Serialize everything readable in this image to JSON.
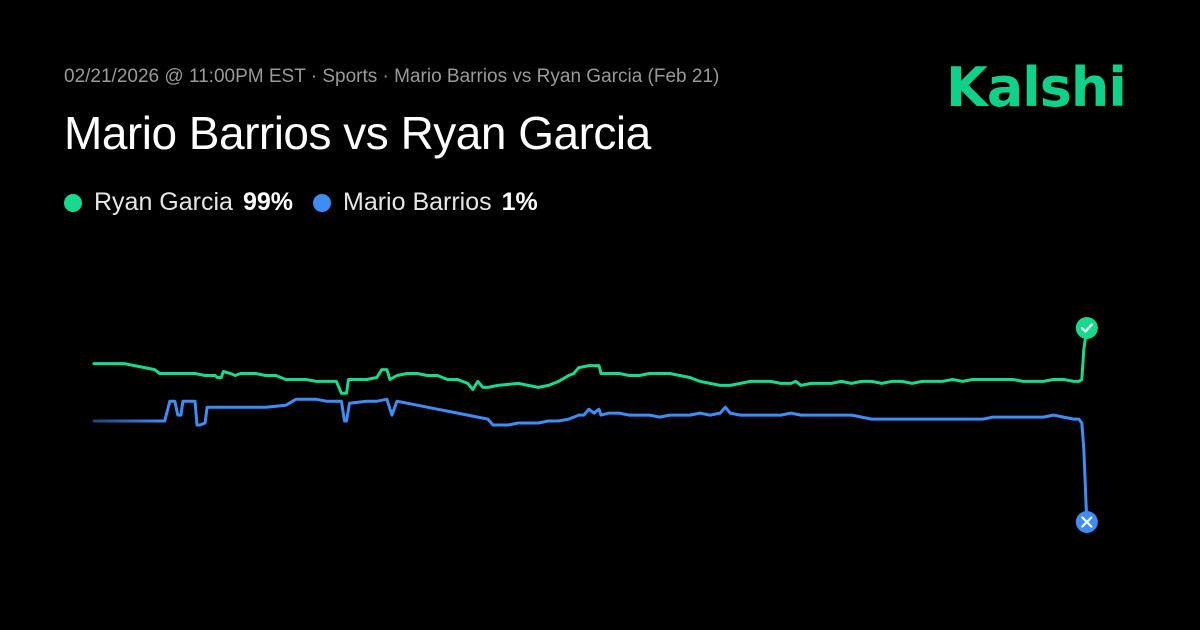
{
  "header": {
    "meta": "02/21/2026 @ 11:00PM EST · Sports · Mario Barrios vs Ryan Garcia (Feb 21)",
    "title": "Mario Barrios vs Ryan Garcia",
    "logo_text": "Kalshi"
  },
  "colors": {
    "brand": "#0fd18a",
    "green_series": "#19d98e",
    "blue_series": "#3d8df5",
    "blue_early": "#22457a"
  },
  "legend": [
    {
      "name": "Ryan Garcia",
      "value": "99%",
      "color": "#19d98e"
    },
    {
      "name": "Mario Barrios",
      "value": "1%",
      "color": "#3d8df5"
    }
  ],
  "chart_data": {
    "type": "line",
    "grid": false,
    "ylim": [
      0,
      100
    ],
    "xlim": [
      0,
      100
    ],
    "series": [
      {
        "name": "Ryan Garcia",
        "color": "#19d98e",
        "end_marker": "check-icon",
        "points": [
          [
            0,
            81
          ],
          [
            3,
            81
          ],
          [
            4,
            80
          ],
          [
            5,
            79
          ],
          [
            6,
            78
          ],
          [
            6.5,
            76
          ],
          [
            8,
            76
          ],
          [
            10,
            76
          ],
          [
            11,
            75
          ],
          [
            12,
            75
          ],
          [
            12.2,
            74
          ],
          [
            12.6,
            74
          ],
          [
            12.8,
            77
          ],
          [
            13.5,
            76
          ],
          [
            14,
            75
          ],
          [
            14.5,
            76
          ],
          [
            16,
            76
          ],
          [
            17,
            75
          ],
          [
            18,
            75
          ],
          [
            19,
            73
          ],
          [
            20,
            73
          ],
          [
            21,
            73
          ],
          [
            22,
            72
          ],
          [
            23,
            72
          ],
          [
            24,
            72
          ],
          [
            24.5,
            66
          ],
          [
            25,
            66
          ],
          [
            25.2,
            73
          ],
          [
            27,
            73
          ],
          [
            28,
            74
          ],
          [
            28.5,
            78
          ],
          [
            29,
            78
          ],
          [
            29.3,
            73
          ],
          [
            30,
            75
          ],
          [
            31,
            76
          ],
          [
            32,
            76
          ],
          [
            33,
            75
          ],
          [
            34,
            75
          ],
          [
            35,
            73
          ],
          [
            36,
            73
          ],
          [
            37,
            71
          ],
          [
            37.5,
            68
          ],
          [
            38,
            72
          ],
          [
            38.5,
            69
          ],
          [
            39,
            69
          ],
          [
            40,
            70
          ],
          [
            42,
            71
          ],
          [
            43,
            70
          ],
          [
            44,
            69
          ],
          [
            45,
            70
          ],
          [
            46,
            72
          ],
          [
            47,
            75
          ],
          [
            47.5,
            76
          ],
          [
            48,
            79
          ],
          [
            49,
            80
          ],
          [
            50,
            80
          ],
          [
            50.2,
            76
          ],
          [
            51,
            76
          ],
          [
            52,
            76
          ],
          [
            53,
            75
          ],
          [
            54,
            75
          ],
          [
            55,
            76
          ],
          [
            57,
            76
          ],
          [
            58,
            75
          ],
          [
            59,
            74
          ],
          [
            60,
            72
          ],
          [
            61,
            71
          ],
          [
            62,
            70
          ],
          [
            63,
            70
          ],
          [
            64,
            71
          ],
          [
            65,
            72
          ],
          [
            66,
            72
          ],
          [
            67,
            72
          ],
          [
            68,
            71
          ],
          [
            69,
            71
          ],
          [
            69.5,
            72
          ],
          [
            70,
            70
          ],
          [
            71,
            71
          ],
          [
            72,
            71
          ],
          [
            73,
            71
          ],
          [
            74,
            72
          ],
          [
            75,
            71
          ],
          [
            76,
            72
          ],
          [
            77,
            72
          ],
          [
            78,
            71
          ],
          [
            79,
            72
          ],
          [
            80,
            72
          ],
          [
            81,
            71
          ],
          [
            82,
            72
          ],
          [
            83,
            72
          ],
          [
            84,
            72
          ],
          [
            85,
            73
          ],
          [
            86,
            72
          ],
          [
            87,
            73
          ],
          [
            88,
            73
          ],
          [
            89,
            73
          ],
          [
            90,
            73
          ],
          [
            91,
            73
          ],
          [
            92,
            72
          ],
          [
            93,
            72
          ],
          [
            94,
            72
          ],
          [
            95,
            73
          ],
          [
            96,
            73
          ],
          [
            97,
            72
          ],
          [
            97.5,
            72
          ],
          [
            97.8,
            73
          ],
          [
            98,
            88
          ],
          [
            98.3,
            99
          ]
        ]
      },
      {
        "name": "Mario Barrios",
        "color": "#3d8df5",
        "start_color": "#22457a",
        "end_marker": "close-icon",
        "points": [
          [
            0,
            52
          ],
          [
            4,
            52
          ],
          [
            5.5,
            52
          ],
          [
            6,
            52
          ],
          [
            7,
            52
          ],
          [
            7.5,
            62
          ],
          [
            8,
            62
          ],
          [
            8.3,
            55
          ],
          [
            8.6,
            55
          ],
          [
            8.8,
            62
          ],
          [
            9.5,
            62
          ],
          [
            10,
            62
          ],
          [
            10.2,
            50
          ],
          [
            10.5,
            50
          ],
          [
            11,
            51
          ],
          [
            11.2,
            59
          ],
          [
            13,
            59
          ],
          [
            15,
            59
          ],
          [
            17,
            59
          ],
          [
            19,
            60
          ],
          [
            20,
            63
          ],
          [
            21,
            63
          ],
          [
            22,
            63
          ],
          [
            23,
            62
          ],
          [
            24,
            62
          ],
          [
            24.5,
            62
          ],
          [
            24.8,
            52
          ],
          [
            25,
            52
          ],
          [
            25.3,
            61
          ],
          [
            27,
            62
          ],
          [
            28,
            62
          ],
          [
            29,
            63
          ],
          [
            29.5,
            55
          ],
          [
            30,
            62
          ],
          [
            31,
            61
          ],
          [
            32,
            60
          ],
          [
            33,
            59
          ],
          [
            34,
            58
          ],
          [
            35,
            57
          ],
          [
            36,
            56
          ],
          [
            37,
            55
          ],
          [
            38,
            54
          ],
          [
            39,
            53
          ],
          [
            39.5,
            50
          ],
          [
            40,
            50
          ],
          [
            41,
            50
          ],
          [
            42,
            51
          ],
          [
            43,
            51
          ],
          [
            44,
            51
          ],
          [
            45,
            52
          ],
          [
            46,
            52
          ],
          [
            47,
            53
          ],
          [
            48,
            55
          ],
          [
            48.5,
            55
          ],
          [
            49,
            58
          ],
          [
            49.5,
            56
          ],
          [
            50,
            58
          ],
          [
            50.2,
            55
          ],
          [
            51,
            56
          ],
          [
            52,
            56
          ],
          [
            53,
            55
          ],
          [
            54,
            55
          ],
          [
            55,
            55
          ],
          [
            56,
            54
          ],
          [
            57,
            55
          ],
          [
            58,
            55
          ],
          [
            59,
            55
          ],
          [
            60,
            56
          ],
          [
            61,
            55
          ],
          [
            62,
            56
          ],
          [
            62.5,
            59
          ],
          [
            63,
            56
          ],
          [
            64,
            55
          ],
          [
            65,
            55
          ],
          [
            66,
            55
          ],
          [
            67,
            55
          ],
          [
            68,
            55
          ],
          [
            69,
            56
          ],
          [
            70,
            55
          ],
          [
            71,
            55
          ],
          [
            72,
            55
          ],
          [
            73,
            55
          ],
          [
            74,
            55
          ],
          [
            75,
            55
          ],
          [
            76,
            54
          ],
          [
            77,
            53
          ],
          [
            78,
            53
          ],
          [
            79,
            53
          ],
          [
            80,
            53
          ],
          [
            81,
            53
          ],
          [
            82,
            53
          ],
          [
            83,
            53
          ],
          [
            84,
            53
          ],
          [
            85,
            53
          ],
          [
            86,
            53
          ],
          [
            87,
            53
          ],
          [
            88,
            53
          ],
          [
            89,
            54
          ],
          [
            90,
            54
          ],
          [
            91,
            54
          ],
          [
            92,
            54
          ],
          [
            93,
            54
          ],
          [
            94,
            54
          ],
          [
            95,
            55
          ],
          [
            96,
            54
          ],
          [
            97,
            53
          ],
          [
            97.5,
            53
          ],
          [
            97.8,
            51
          ],
          [
            98,
            38
          ],
          [
            98.3,
            1
          ]
        ]
      }
    ]
  }
}
